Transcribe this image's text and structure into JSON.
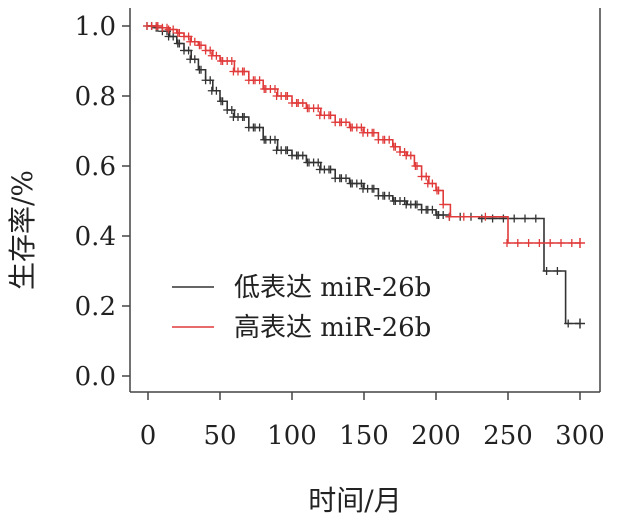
{
  "chart_data": {
    "type": "line",
    "title": "",
    "xlabel": "时间/月",
    "ylabel": "生存率/%",
    "xlim": [
      0,
      300
    ],
    "ylim": [
      0,
      1.0
    ],
    "x_ticks": [
      "0",
      "50",
      "100",
      "150",
      "200",
      "250",
      "300"
    ],
    "y_ticks": [
      "0.0",
      "0.2",
      "0.4",
      "0.6",
      "0.8",
      "1.0"
    ],
    "grid": false,
    "legend_position": "bottom-left",
    "series": [
      {
        "name": "低表达 miR-26b",
        "color": "#333333",
        "x": [
          0,
          5,
          10,
          15,
          20,
          25,
          30,
          35,
          40,
          45,
          50,
          55,
          60,
          70,
          80,
          90,
          100,
          110,
          120,
          130,
          140,
          150,
          160,
          170,
          180,
          190,
          200,
          210,
          220,
          230,
          240,
          250,
          260,
          270,
          275,
          275,
          290,
          290,
          300
        ],
        "y": [
          1.0,
          0.995,
          0.985,
          0.97,
          0.95,
          0.93,
          0.905,
          0.875,
          0.845,
          0.815,
          0.785,
          0.76,
          0.74,
          0.71,
          0.675,
          0.645,
          0.63,
          0.61,
          0.59,
          0.565,
          0.55,
          0.535,
          0.515,
          0.5,
          0.49,
          0.475,
          0.46,
          0.455,
          0.455,
          0.45,
          0.45,
          0.45,
          0.45,
          0.45,
          0.45,
          0.3,
          0.3,
          0.15,
          0.15
        ]
      },
      {
        "name": "高表达 miR-26b",
        "color": "#e03a3a",
        "x": [
          0,
          5,
          10,
          15,
          20,
          25,
          30,
          35,
          40,
          45,
          50,
          60,
          70,
          80,
          90,
          100,
          110,
          120,
          130,
          140,
          150,
          160,
          170,
          175,
          180,
          185,
          190,
          195,
          200,
          205,
          210,
          220,
          230,
          240,
          250,
          250,
          260,
          270,
          280,
          290,
          300
        ],
        "y": [
          1.0,
          1.0,
          0.995,
          0.99,
          0.98,
          0.97,
          0.955,
          0.945,
          0.93,
          0.915,
          0.9,
          0.87,
          0.845,
          0.82,
          0.8,
          0.78,
          0.765,
          0.745,
          0.725,
          0.71,
          0.695,
          0.675,
          0.655,
          0.64,
          0.63,
          0.6,
          0.57,
          0.55,
          0.53,
          0.49,
          0.455,
          0.455,
          0.455,
          0.455,
          0.45,
          0.38,
          0.38,
          0.38,
          0.38,
          0.38,
          0.38
        ]
      }
    ]
  }
}
